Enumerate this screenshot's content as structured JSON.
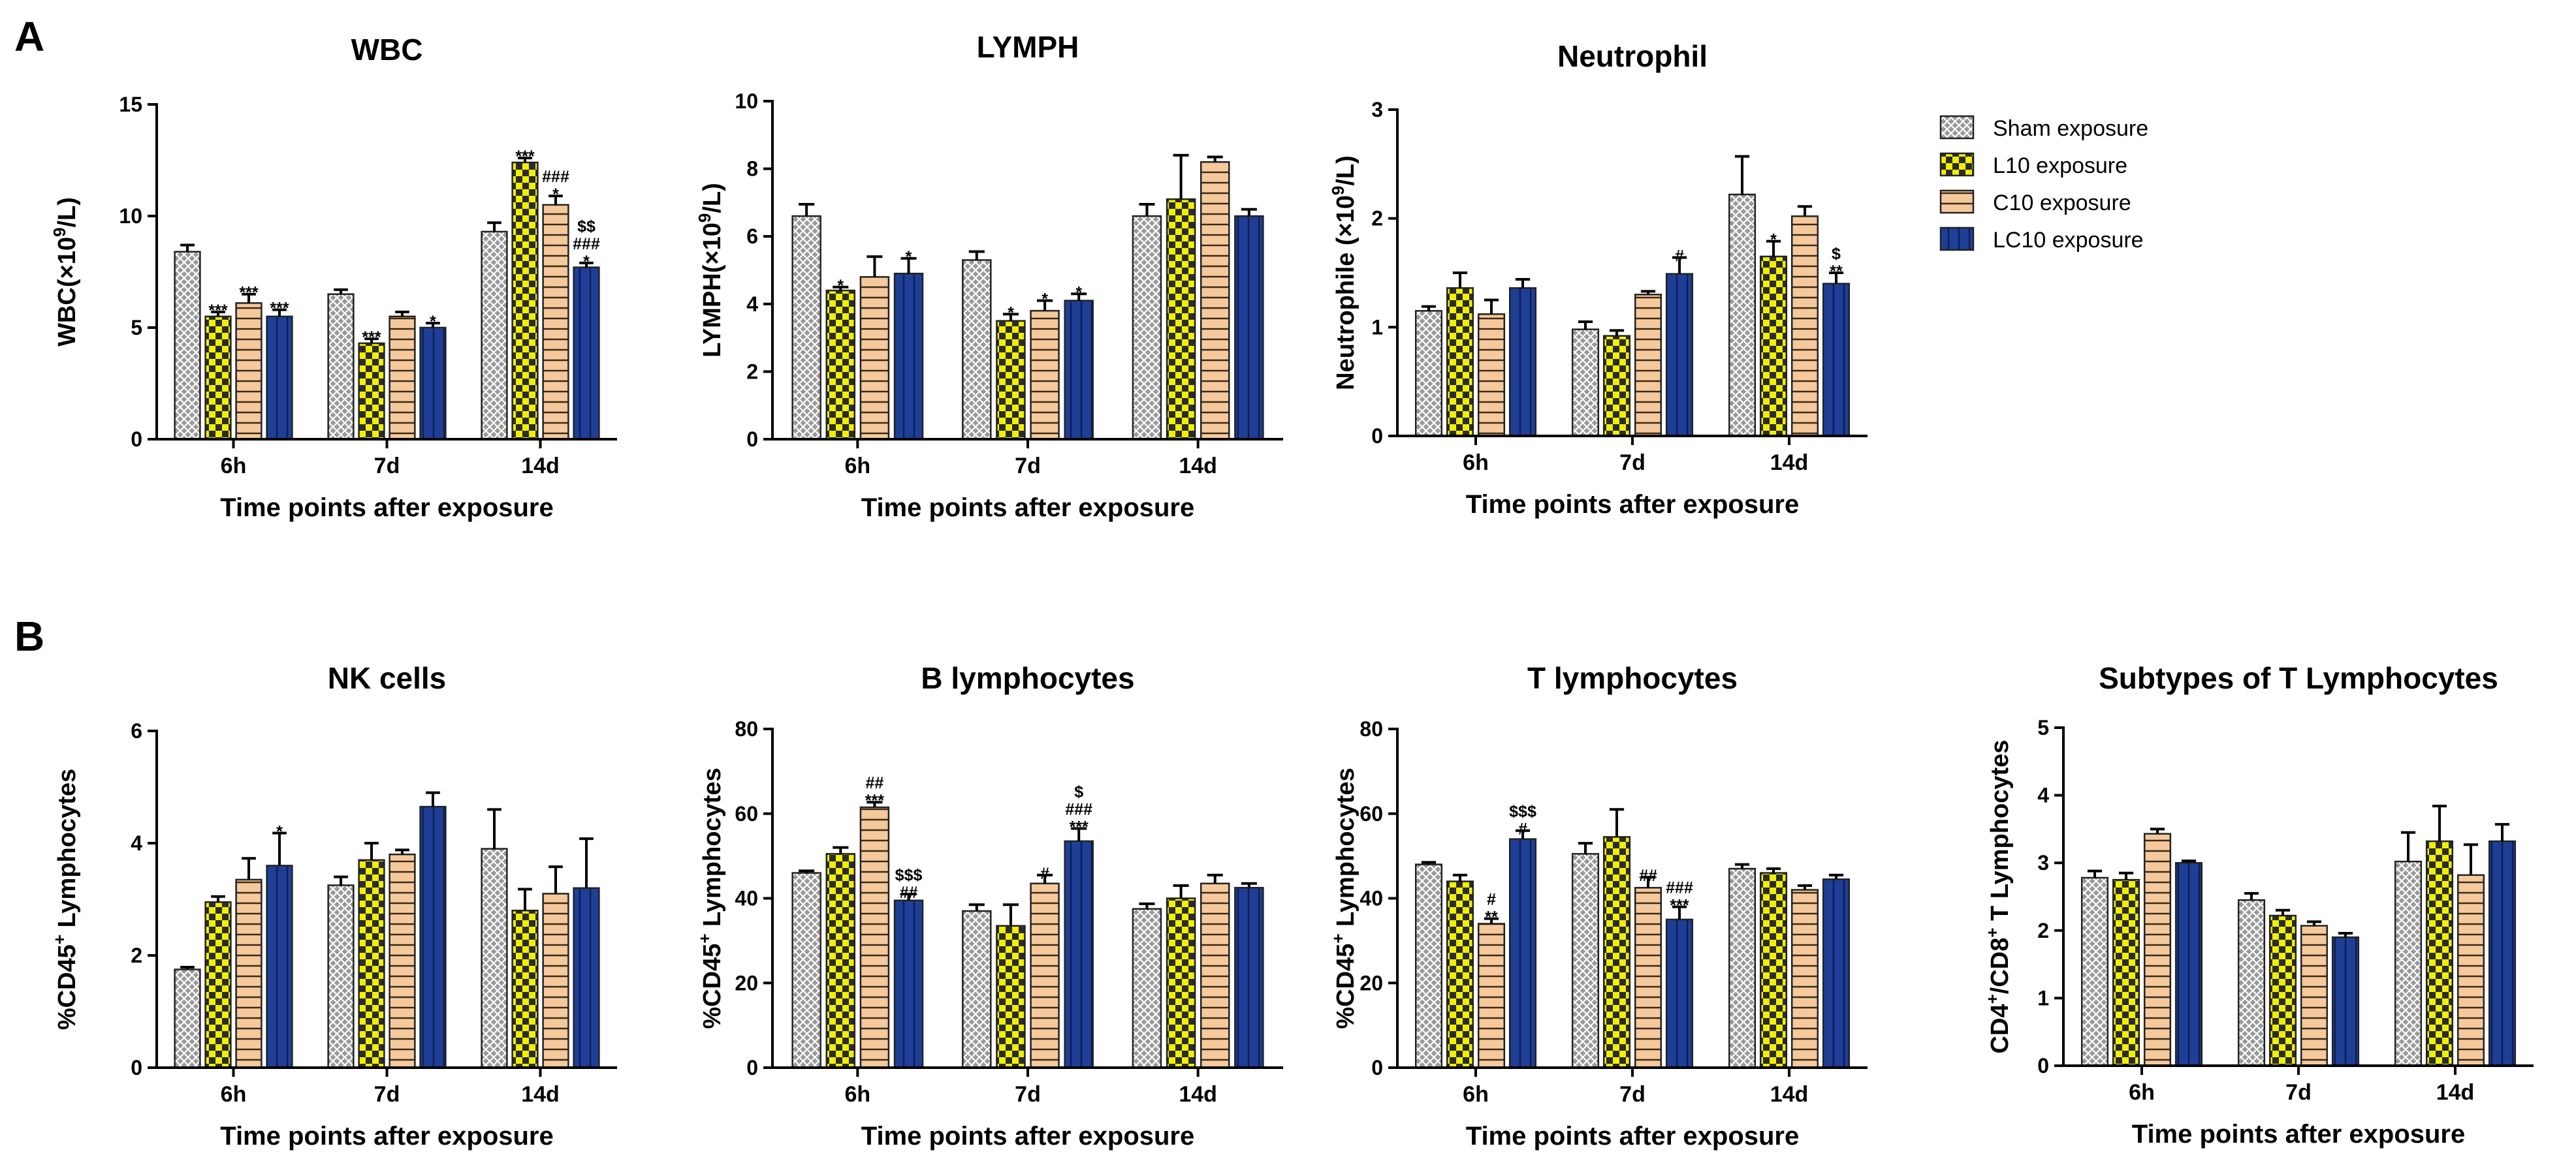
{
  "panels": [
    {
      "letter": "A"
    },
    {
      "letter": "B"
    }
  ],
  "legend": [
    {
      "name": "Sham exposure",
      "pattern": "sham",
      "color": "#8c8c8c"
    },
    {
      "name": "L10 exposure",
      "pattern": "l10",
      "color": "#f0f000"
    },
    {
      "name": "C10 exposure",
      "pattern": "c10",
      "color": "#f5c99b"
    },
    {
      "name": "LC10 exposure",
      "pattern": "lc10",
      "color": "#1f3f97"
    }
  ],
  "chart_data": [
    {
      "type": "bar",
      "title": "WBC",
      "ylabel_parts": [
        {
          "t": "WBC(×10"
        },
        {
          "t": "9",
          "sup": true
        },
        {
          "t": "/L)"
        }
      ],
      "xlabel": "Time points  after exposure",
      "categories": [
        "6h",
        "7d",
        "14d"
      ],
      "ylim": [
        0,
        15
      ],
      "yticks": [
        0,
        5,
        10,
        15
      ],
      "series": [
        {
          "name": "Sham exposure",
          "values": [
            8.4,
            6.5,
            9.3
          ],
          "errors": [
            0.3,
            0.2,
            0.4
          ]
        },
        {
          "name": "L10 exposure",
          "values": [
            5.5,
            4.3,
            12.4
          ],
          "errors": [
            0.2,
            0.2,
            0.2
          ]
        },
        {
          "name": "C10 exposure",
          "values": [
            6.1,
            5.5,
            10.5
          ],
          "errors": [
            0.4,
            0.2,
            0.4
          ]
        },
        {
          "name": "LC10 exposure",
          "values": [
            5.5,
            5.0,
            7.7
          ],
          "errors": [
            0.3,
            0.2,
            0.2
          ]
        }
      ],
      "annotations": [
        {
          "category": 0,
          "series": 1,
          "lines": [
            "***"
          ]
        },
        {
          "category": 0,
          "series": 2,
          "lines": [
            "***"
          ]
        },
        {
          "category": 0,
          "series": 3,
          "lines": [
            "***"
          ]
        },
        {
          "category": 1,
          "series": 1,
          "lines": [
            "***"
          ]
        },
        {
          "category": 1,
          "series": 3,
          "lines": [
            "*"
          ]
        },
        {
          "category": 2,
          "series": 1,
          "lines": [
            "***"
          ]
        },
        {
          "category": 2,
          "series": 2,
          "lines": [
            "###",
            "*"
          ]
        },
        {
          "category": 2,
          "series": 3,
          "lines": [
            "$$",
            "###",
            "*"
          ]
        }
      ]
    },
    {
      "type": "bar",
      "title": "LYMPH",
      "ylabel_parts": [
        {
          "t": "LYMPH(×10"
        },
        {
          "t": "9",
          "sup": true
        },
        {
          "t": "/L)"
        }
      ],
      "xlabel": "Time points  after exposure",
      "categories": [
        "6h",
        "7d",
        "14d"
      ],
      "ylim": [
        0,
        10
      ],
      "yticks": [
        0,
        2,
        4,
        6,
        8,
        10
      ],
      "series": [
        {
          "name": "Sham exposure",
          "values": [
            6.6,
            5.3,
            6.6
          ],
          "errors": [
            0.35,
            0.25,
            0.35
          ]
        },
        {
          "name": "L10 exposure",
          "values": [
            4.4,
            3.5,
            7.1
          ],
          "errors": [
            0.1,
            0.2,
            1.3
          ]
        },
        {
          "name": "C10 exposure",
          "values": [
            4.8,
            3.8,
            8.2
          ],
          "errors": [
            0.6,
            0.3,
            0.15
          ]
        },
        {
          "name": "LC10 exposure",
          "values": [
            4.9,
            4.1,
            6.6
          ],
          "errors": [
            0.45,
            0.2,
            0.2
          ]
        }
      ],
      "annotations": [
        {
          "category": 0,
          "series": 1,
          "lines": [
            "*"
          ]
        },
        {
          "category": 0,
          "series": 3,
          "lines": [
            "*"
          ]
        },
        {
          "category": 1,
          "series": 1,
          "lines": [
            "*"
          ]
        },
        {
          "category": 1,
          "series": 2,
          "lines": [
            "*"
          ]
        },
        {
          "category": 1,
          "series": 3,
          "lines": [
            "*"
          ]
        }
      ]
    },
    {
      "type": "bar",
      "title": "Neutrophil",
      "ylabel_parts": [
        {
          "t": "Neutrophile (×10"
        },
        {
          "t": "9",
          "sup": true
        },
        {
          "t": "/L)"
        }
      ],
      "xlabel": "Time points  after exposure",
      "categories": [
        "6h",
        "7d",
        "14d"
      ],
      "ylim": [
        0,
        3
      ],
      "yticks": [
        0,
        1,
        2,
        3
      ],
      "series": [
        {
          "name": "Sham exposure",
          "values": [
            1.15,
            0.98,
            2.22
          ],
          "errors": [
            0.04,
            0.07,
            0.35
          ]
        },
        {
          "name": "L10 exposure",
          "values": [
            1.36,
            0.92,
            1.65
          ],
          "errors": [
            0.14,
            0.05,
            0.14
          ]
        },
        {
          "name": "C10 exposure",
          "values": [
            1.12,
            1.3,
            2.02
          ],
          "errors": [
            0.13,
            0.03,
            0.09
          ]
        },
        {
          "name": "LC10 exposure",
          "values": [
            1.36,
            1.49,
            1.4
          ],
          "errors": [
            0.08,
            0.15,
            0.1
          ]
        }
      ],
      "annotations": [
        {
          "category": 1,
          "series": 3,
          "lines": [
            "#"
          ]
        },
        {
          "category": 2,
          "series": 1,
          "lines": [
            "*"
          ]
        },
        {
          "category": 2,
          "series": 3,
          "lines": [
            "$",
            "**"
          ]
        }
      ]
    },
    {
      "type": "bar",
      "title": "NK cells",
      "ylabel_parts": [
        {
          "t": "%CD45"
        },
        {
          "t": "+",
          "sup": true
        },
        {
          "t": " Lymphocytes"
        }
      ],
      "xlabel": "Time points  after exposure",
      "categories": [
        "6h",
        "7d",
        "14d"
      ],
      "ylim": [
        0,
        6
      ],
      "yticks": [
        0,
        2,
        4,
        6
      ],
      "series": [
        {
          "name": "Sham exposure",
          "values": [
            1.75,
            3.25,
            3.9
          ],
          "errors": [
            0.04,
            0.15,
            0.7
          ]
        },
        {
          "name": "L10 exposure",
          "values": [
            2.95,
            3.7,
            2.8
          ],
          "errors": [
            0.1,
            0.3,
            0.38
          ]
        },
        {
          "name": "C10 exposure",
          "values": [
            3.35,
            3.8,
            3.1
          ],
          "errors": [
            0.38,
            0.08,
            0.48
          ]
        },
        {
          "name": "LC10 exposure",
          "values": [
            3.6,
            4.65,
            3.2
          ],
          "errors": [
            0.58,
            0.25,
            0.88
          ]
        }
      ],
      "annotations": [
        {
          "category": 0,
          "series": 3,
          "lines": [
            "*"
          ]
        }
      ]
    },
    {
      "type": "bar",
      "title": "B lymphocytes",
      "ylabel_parts": [
        {
          "t": "%CD45"
        },
        {
          "t": "+",
          "sup": true
        },
        {
          "t": " Lymphocytes"
        }
      ],
      "xlabel": "Time points  after exposure",
      "categories": [
        "6h",
        "7d",
        "14d"
      ],
      "ylim": [
        0,
        80
      ],
      "yticks": [
        0,
        20,
        40,
        60,
        80
      ],
      "series": [
        {
          "name": "Sham exposure",
          "values": [
            46,
            37,
            37.5
          ],
          "errors": [
            0.5,
            1.5,
            1.2
          ]
        },
        {
          "name": "L10 exposure",
          "values": [
            50.5,
            33.5,
            40
          ],
          "errors": [
            1.5,
            5.0,
            3.0
          ]
        },
        {
          "name": "C10 exposure",
          "values": [
            61.5,
            43.5,
            43.5
          ],
          "errors": [
            1.2,
            2.0,
            2.0
          ]
        },
        {
          "name": "LC10 exposure",
          "values": [
            39.5,
            53.5,
            42.5
          ],
          "errors": [
            1.5,
            3.0,
            1.0
          ]
        }
      ],
      "annotations": [
        {
          "category": 0,
          "series": 2,
          "lines": [
            "##",
            "***"
          ]
        },
        {
          "category": 0,
          "series": 3,
          "lines": [
            "$$$",
            "##"
          ]
        },
        {
          "category": 1,
          "series": 2,
          "lines": [
            "#"
          ]
        },
        {
          "category": 1,
          "series": 3,
          "lines": [
            "$",
            "###",
            "***"
          ]
        }
      ]
    },
    {
      "type": "bar",
      "title": "T lymphocytes",
      "ylabel_parts": [
        {
          "t": "%CD45"
        },
        {
          "t": "+",
          "sup": true
        },
        {
          "t": " Lymphocytes"
        }
      ],
      "xlabel": "Time points  after exposure",
      "categories": [
        "6h",
        "7d",
        "14d"
      ],
      "ylim": [
        0,
        80
      ],
      "yticks": [
        0,
        20,
        40,
        60,
        80
      ],
      "series": [
        {
          "name": "Sham exposure",
          "values": [
            48,
            50.5,
            47
          ],
          "errors": [
            0.5,
            2.5,
            1.0
          ]
        },
        {
          "name": "L10 exposure",
          "values": [
            44,
            54.5,
            46
          ],
          "errors": [
            1.5,
            6.5,
            1.0
          ]
        },
        {
          "name": "C10 exposure",
          "values": [
            34,
            42.5,
            42
          ],
          "errors": [
            1.2,
            2.5,
            1.0
          ]
        },
        {
          "name": "LC10 exposure",
          "values": [
            54,
            35,
            44.5
          ],
          "errors": [
            2.0,
            3.0,
            1.0
          ]
        }
      ],
      "annotations": [
        {
          "category": 0,
          "series": 2,
          "lines": [
            "#",
            "**"
          ]
        },
        {
          "category": 0,
          "series": 3,
          "lines": [
            "$$$",
            "#"
          ]
        },
        {
          "category": 1,
          "series": 2,
          "lines": [
            "##"
          ]
        },
        {
          "category": 1,
          "series": 3,
          "lines": [
            "###",
            "***"
          ]
        }
      ]
    },
    {
      "type": "bar",
      "title": "Subtypes of T Lymphocytes",
      "ylabel_parts": [
        {
          "t": "CD4"
        },
        {
          "t": "+",
          "sup": true
        },
        {
          "t": "/CD8"
        },
        {
          "t": "+",
          "sup": true
        },
        {
          "t": " T Lymphocytes"
        }
      ],
      "xlabel": "Time points  after exposure",
      "categories": [
        "6h",
        "7d",
        "14d"
      ],
      "ylim": [
        0,
        5
      ],
      "yticks": [
        0,
        1,
        2,
        3,
        4,
        5
      ],
      "series": [
        {
          "name": "Sham exposure",
          "values": [
            2.78,
            2.45,
            3.02
          ],
          "errors": [
            0.1,
            0.1,
            0.43
          ]
        },
        {
          "name": "L10 exposure",
          "values": [
            2.75,
            2.22,
            3.32
          ],
          "errors": [
            0.1,
            0.08,
            0.52
          ]
        },
        {
          "name": "C10 exposure",
          "values": [
            3.43,
            2.07,
            2.82
          ],
          "errors": [
            0.07,
            0.06,
            0.45
          ]
        },
        {
          "name": "LC10 exposure",
          "values": [
            3.0,
            1.9,
            3.32
          ],
          "errors": [
            0.03,
            0.06,
            0.25
          ]
        }
      ],
      "annotations": []
    }
  ]
}
